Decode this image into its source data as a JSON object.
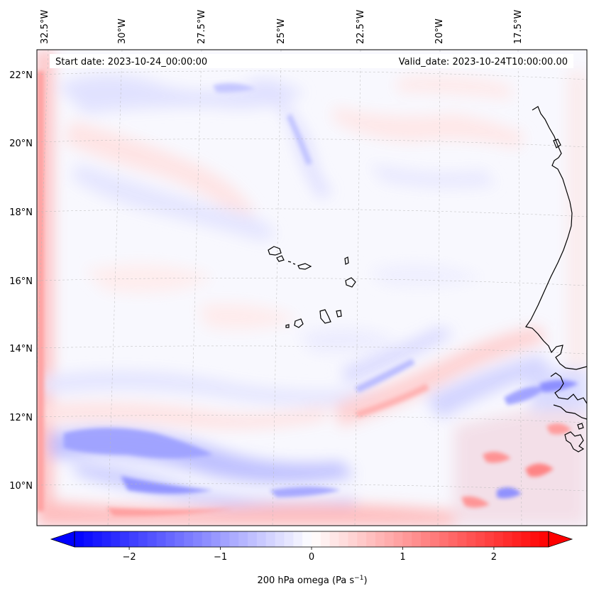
{
  "header": {
    "start_date": "Start date: 2023-10-24_00:00:00",
    "valid_date": "Valid_date: 2023-10-24T10:00:00.00"
  },
  "map": {
    "lon_labels": [
      "32.5°W",
      "30°W",
      "27.5°W",
      "25°W",
      "22.5°W",
      "20°W",
      "17.5°W"
    ],
    "lat_labels": [
      "22°N",
      "20°N",
      "18°N",
      "16°N",
      "14°N",
      "12°N",
      "10°N"
    ],
    "features": [
      "Cape Verde islands",
      "West African coastline"
    ]
  },
  "colorbar": {
    "ticks": [
      "−2",
      "−1",
      "0",
      "1",
      "2"
    ],
    "tick_values": [
      -2,
      -1,
      0,
      1,
      2
    ],
    "range": [
      -2.6,
      2.6
    ],
    "label": "200 hPa omega (Pa s",
    "label_exp": "−1",
    "label_close": ")",
    "colors": {
      "negative": "#0000ff",
      "zero": "#ffffff",
      "positive": "#ff0000"
    }
  }
}
